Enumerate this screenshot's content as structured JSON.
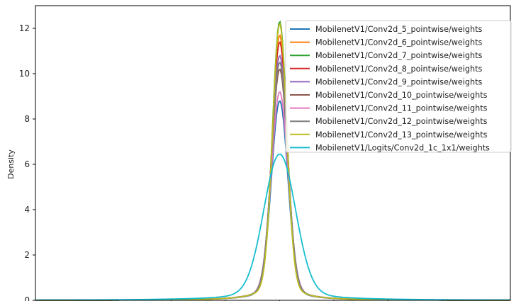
{
  "chart_data": {
    "type": "line",
    "title": "",
    "xlabel": "",
    "ylabel": "Density",
    "ylim": [
      0,
      13
    ],
    "xlim": [
      -0.9,
      0.85
    ],
    "yticks": [
      0,
      2,
      4,
      6,
      8,
      10,
      12
    ],
    "legend_position": "top-right",
    "grid": false,
    "series": [
      {
        "name": "MobilenetV1/Conv2d_5_pointwise/weights",
        "color": "#1f77b4",
        "peak": 8.8,
        "sigma": 0.0298
      },
      {
        "name": "MobilenetV1/Conv2d_6_pointwise/weights",
        "color": "#ff7f0e",
        "peak": 11.7,
        "sigma": 0.027
      },
      {
        "name": "MobilenetV1/Conv2d_7_pointwise/weights",
        "color": "#2ca02c",
        "peak": 12.3,
        "sigma": 0.0262
      },
      {
        "name": "MobilenetV1/Conv2d_8_pointwise/weights",
        "color": "#d62728",
        "peak": 11.4,
        "sigma": 0.0275
      },
      {
        "name": "MobilenetV1/Conv2d_9_pointwise/weights",
        "color": "#9467bd",
        "peak": 10.8,
        "sigma": 0.0285
      },
      {
        "name": "MobilenetV1/Conv2d_10_pointwise/weights",
        "color": "#8c564b",
        "peak": 10.2,
        "sigma": 0.0292
      },
      {
        "name": "MobilenetV1/Conv2d_11_pointwise/weights",
        "color": "#e377c2",
        "peak": 9.2,
        "sigma": 0.0302
      },
      {
        "name": "MobilenetV1/Conv2d_12_pointwise/weights",
        "color": "#7f7f7f",
        "peak": 10.5,
        "sigma": 0.0288
      },
      {
        "name": "MobilenetV1/Conv2d_13_pointwise/weights",
        "color": "#bcbd22",
        "peak": 12.2,
        "sigma": 0.0258
      },
      {
        "name": "MobilenetV1/Logits/Conv2d_1c_1x1/weights",
        "color": "#17becf",
        "peak": 6.45,
        "sigma": 0.058
      }
    ]
  }
}
